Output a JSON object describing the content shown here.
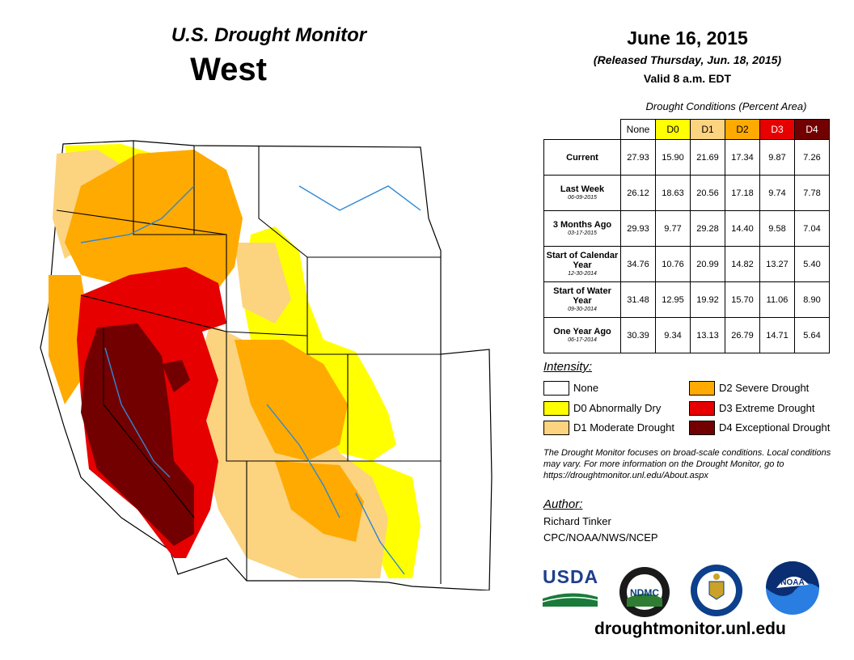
{
  "header": {
    "title": "U.S. Drought Monitor",
    "region": "West",
    "date": "June 16, 2015",
    "released": "(Released Thursday, Jun. 18, 2015)",
    "valid": "Valid 8 a.m. EDT"
  },
  "table": {
    "caption": "Drought Conditions (Percent Area)",
    "columns": [
      "None",
      "D0",
      "D1",
      "D2",
      "D3",
      "D4"
    ],
    "column_colors": [
      "#ffffff",
      "#ffff00",
      "#fcd37f",
      "#ffaa00",
      "#e60000",
      "#730000"
    ],
    "column_text_colors": [
      "#000000",
      "#000000",
      "#000000",
      "#000000",
      "#ffffff",
      "#ffffff"
    ],
    "rows": [
      {
        "label": "Current",
        "date": "",
        "values": [
          "27.93",
          "15.90",
          "21.69",
          "17.34",
          "9.87",
          "7.26"
        ]
      },
      {
        "label": "Last Week",
        "date": "06-09-2015",
        "values": [
          "26.12",
          "18.63",
          "20.56",
          "17.18",
          "9.74",
          "7.78"
        ]
      },
      {
        "label": "3 Months Ago",
        "date": "03-17-2015",
        "values": [
          "29.93",
          "9.77",
          "29.28",
          "14.40",
          "9.58",
          "7.04"
        ]
      },
      {
        "label": "Start of Calendar Year",
        "date": "12-30-2014",
        "values": [
          "34.76",
          "10.76",
          "20.99",
          "14.82",
          "13.27",
          "5.40"
        ]
      },
      {
        "label": "Start of Water Year",
        "date": "09-30-2014",
        "values": [
          "31.48",
          "12.95",
          "19.92",
          "15.70",
          "11.06",
          "8.90"
        ]
      },
      {
        "label": "One Year Ago",
        "date": "06-17-2014",
        "values": [
          "30.39",
          "9.34",
          "13.13",
          "26.79",
          "14.71",
          "5.64"
        ]
      }
    ]
  },
  "legend": {
    "title": "Intensity:",
    "items": [
      {
        "label": "None",
        "color": "#ffffff"
      },
      {
        "label": "D0 Abnormally Dry",
        "color": "#ffff00"
      },
      {
        "label": "D1 Moderate Drought",
        "color": "#fcd37f"
      },
      {
        "label": "D2 Severe Drought",
        "color": "#ffaa00"
      },
      {
        "label": "D3 Extreme Drought",
        "color": "#e60000"
      },
      {
        "label": "D4 Exceptional Drought",
        "color": "#730000"
      }
    ]
  },
  "disclaimer": "The Drought Monitor focuses on broad-scale conditions. Local conditions may vary. For more information on the Drought Monitor, go to https://droughtmonitor.unl.edu/About.aspx",
  "author": {
    "title": "Author:",
    "name": "Richard Tinker",
    "org": "CPC/NOAA/NWS/NCEP"
  },
  "logos": {
    "usda": "USDA",
    "ndmc": "NDMC",
    "noaa": "NOAA"
  },
  "footer": {
    "url": "droughtmonitor.unl.edu"
  }
}
